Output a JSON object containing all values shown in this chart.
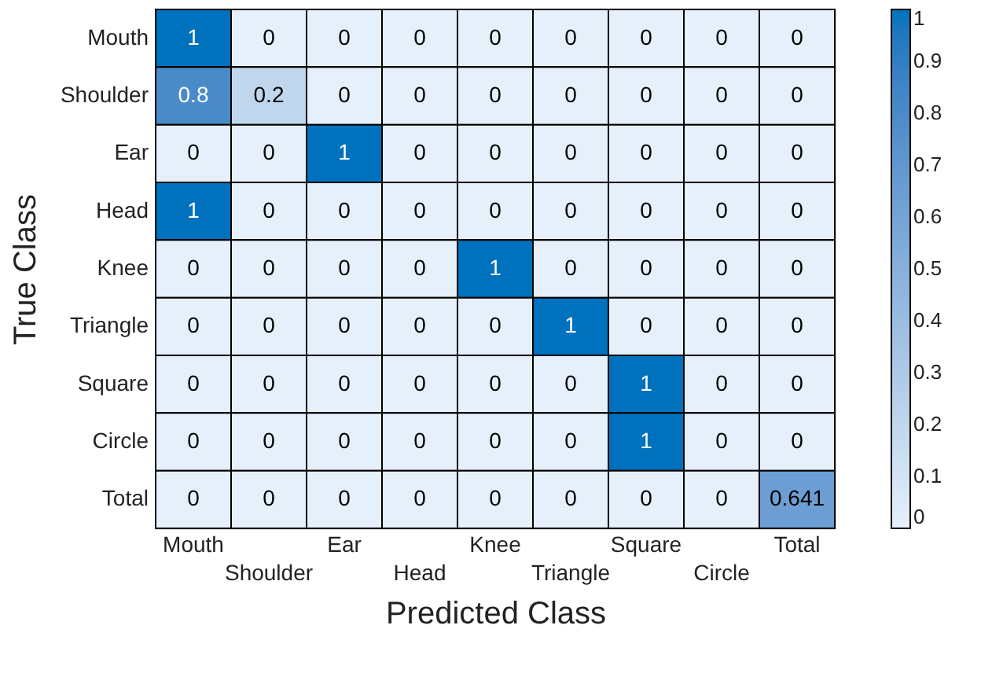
{
  "chart_data": {
    "type": "heatmap",
    "xlabel": "Predicted Class",
    "ylabel": "True Class",
    "categories": [
      "Mouth",
      "Shoulder",
      "Ear",
      "Head",
      "Knee",
      "Triangle",
      "Square",
      "Circle",
      "Total"
    ],
    "y_categories": [
      "Mouth",
      "Shoulder",
      "Ear",
      "Head",
      "Knee",
      "Triangle",
      "Square",
      "Circle",
      "Total"
    ],
    "cells": [
      [
        1,
        0,
        0,
        0,
        0,
        0,
        0,
        0,
        0
      ],
      [
        0.8,
        0.2,
        0,
        0,
        0,
        0,
        0,
        0,
        0
      ],
      [
        0,
        0,
        1,
        0,
        0,
        0,
        0,
        0,
        0
      ],
      [
        1,
        0,
        0,
        0,
        0,
        0,
        0,
        0,
        0
      ],
      [
        0,
        0,
        0,
        0,
        1,
        0,
        0,
        0,
        0
      ],
      [
        0,
        0,
        0,
        0,
        0,
        1,
        0,
        0,
        0
      ],
      [
        0,
        0,
        0,
        0,
        0,
        0,
        1,
        0,
        0
      ],
      [
        0,
        0,
        0,
        0,
        0,
        0,
        1,
        0,
        0
      ],
      [
        0,
        0,
        0,
        0,
        0,
        0,
        0,
        0,
        0.641
      ]
    ],
    "data_labels": true,
    "clim": [
      0,
      1
    ],
    "cticks": [
      0,
      0.1,
      0.2,
      0.3,
      0.4,
      0.5,
      0.6,
      0.7,
      0.8,
      0.9,
      1
    ],
    "colors": [
      "#e6f0fa",
      "#0072bd"
    ]
  }
}
